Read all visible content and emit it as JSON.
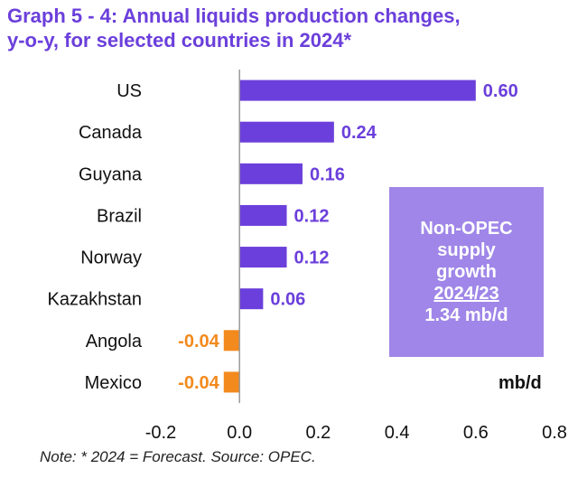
{
  "title_line1": "Graph 5 - 4: Annual liquids production changes,",
  "title_line2": "y-o-y, for selected countries in 2024*",
  "note": "Note: * 2024 = Forecast. Source: OPEC.",
  "callout": {
    "line1": "Non-OPEC",
    "line2": "supply",
    "line3": "growth",
    "line4": "2024/23",
    "line5": "1.34 mb/d"
  },
  "unit_label": "mb/d",
  "colors": {
    "title": "#6B3FDB",
    "positive": "#6B3FDB",
    "negative": "#F28A1E",
    "callout_bg": "#9F86E8",
    "axis": "#999999"
  },
  "chart_data": {
    "type": "bar",
    "orientation": "horizontal",
    "categories": [
      "US",
      "Canada",
      "Guyana",
      "Brazil",
      "Norway",
      "Kazakhstan",
      "Angola",
      "Mexico"
    ],
    "values": [
      0.6,
      0.24,
      0.16,
      0.12,
      0.12,
      0.06,
      -0.04,
      -0.04
    ],
    "data_labels": [
      "0.60",
      "0.24",
      "0.16",
      "0.12",
      "0.12",
      "0.06",
      "-0.04",
      "-0.04"
    ],
    "xlim": [
      -0.2,
      0.8
    ],
    "xticks": [
      -0.2,
      0.0,
      0.2,
      0.4,
      0.6,
      0.8
    ],
    "xtick_labels": [
      "-0.2",
      "0.0",
      "0.2",
      "0.4",
      "0.6",
      "0.8"
    ],
    "grid": false,
    "legend": "none"
  }
}
